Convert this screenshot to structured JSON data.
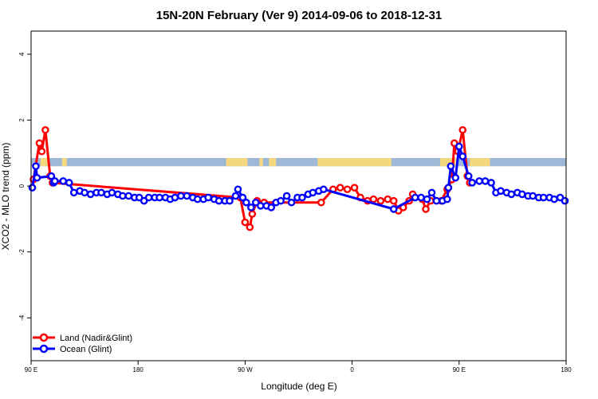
{
  "chart_data": {
    "type": "line",
    "title": "15N-20N February (Ver 9)   2014-09-06 to 2018-12-31",
    "xlabel": "Longitude (deg E)",
    "ylabel": "XCO2 - MLO trend (ppm)",
    "xlim": [
      90,
      540
    ],
    "ylim": [
      -5.3,
      4.7
    ],
    "x_ticks": [
      {
        "value": 90,
        "label": "90 E"
      },
      {
        "value": 180,
        "label": "180"
      },
      {
        "value": 270,
        "label": "90 W"
      },
      {
        "value": 360,
        "label": "0"
      },
      {
        "value": 450,
        "label": "90 E"
      },
      {
        "value": 540,
        "label": "180"
      }
    ],
    "y_ticks": [
      -4,
      -2,
      0,
      2,
      4
    ],
    "grid": false,
    "legend_position": "bottom-left",
    "land_band": {
      "y_range": [
        0.6,
        0.85
      ],
      "ocean_color": "#9fb8d8",
      "land_color": "#f5d77f",
      "land_segments": [
        [
          98,
          104
        ],
        [
          116,
          120
        ],
        [
          254,
          272
        ],
        [
          282,
          285
        ],
        [
          290,
          296
        ],
        [
          331,
          393
        ],
        [
          434,
          448
        ],
        [
          459,
          476
        ]
      ]
    },
    "series": [
      {
        "name": "Land (Nadir&Glint)",
        "color": "#ff0000",
        "points": [
          [
            92,
            0.2
          ],
          [
            97,
            1.3
          ],
          [
            99,
            1.05
          ],
          [
            102,
            1.7
          ],
          [
            106,
            0.3
          ],
          [
            108,
            0.1
          ],
          [
            266,
            -0.35
          ],
          [
            270,
            -1.1
          ],
          [
            274,
            -1.25
          ],
          [
            276,
            -0.85
          ],
          [
            280,
            -0.45
          ],
          [
            286,
            -0.5
          ],
          [
            334,
            -0.5
          ],
          [
            344,
            -0.1
          ],
          [
            350,
            -0.05
          ],
          [
            356,
            -0.1
          ],
          [
            362,
            -0.05
          ],
          [
            367,
            -0.35
          ],
          [
            373,
            -0.45
          ],
          [
            378,
            -0.4
          ],
          [
            384,
            -0.45
          ],
          [
            390,
            -0.4
          ],
          [
            395,
            -0.45
          ],
          [
            399,
            -0.75
          ],
          [
            403,
            -0.65
          ],
          [
            408,
            -0.45
          ],
          [
            411,
            -0.25
          ],
          [
            419,
            -0.4
          ],
          [
            422,
            -0.7
          ],
          [
            426,
            -0.45
          ],
          [
            435,
            -0.45
          ],
          [
            440,
            -0.1
          ],
          [
            444,
            0.2
          ],
          [
            446,
            1.3
          ],
          [
            449,
            1.05
          ],
          [
            453,
            1.7
          ],
          [
            457,
            0.3
          ],
          [
            459,
            0.1
          ]
        ]
      },
      {
        "name": "Ocean (Glint)",
        "color": "#0000ff",
        "points": [
          [
            91,
            -0.05
          ],
          [
            94,
            0.6
          ],
          [
            95,
            0.25
          ],
          [
            107,
            0.3
          ],
          [
            109,
            0.1
          ],
          [
            110,
            0.15
          ],
          [
            117,
            0.15
          ],
          [
            122,
            0.1
          ],
          [
            126,
            -0.2
          ],
          [
            131,
            -0.15
          ],
          [
            135,
            -0.2
          ],
          [
            140,
            -0.25
          ],
          [
            145,
            -0.2
          ],
          [
            149,
            -0.2
          ],
          [
            154,
            -0.25
          ],
          [
            158,
            -0.2
          ],
          [
            163,
            -0.25
          ],
          [
            167,
            -0.3
          ],
          [
            172,
            -0.3
          ],
          [
            177,
            -0.35
          ],
          [
            181,
            -0.35
          ],
          [
            185,
            -0.45
          ],
          [
            189,
            -0.35
          ],
          [
            194,
            -0.35
          ],
          [
            198,
            -0.35
          ],
          [
            203,
            -0.35
          ],
          [
            207,
            -0.4
          ],
          [
            211,
            -0.35
          ],
          [
            216,
            -0.3
          ],
          [
            221,
            -0.3
          ],
          [
            226,
            -0.35
          ],
          [
            230,
            -0.4
          ],
          [
            235,
            -0.4
          ],
          [
            239,
            -0.35
          ],
          [
            244,
            -0.4
          ],
          [
            248,
            -0.45
          ],
          [
            253,
            -0.45
          ],
          [
            257,
            -0.45
          ],
          [
            262,
            -0.3
          ],
          [
            264,
            -0.1
          ],
          [
            268,
            -0.35
          ],
          [
            271,
            -0.5
          ],
          [
            275,
            -0.65
          ],
          [
            279,
            -0.5
          ],
          [
            283,
            -0.6
          ],
          [
            288,
            -0.6
          ],
          [
            292,
            -0.65
          ],
          [
            296,
            -0.5
          ],
          [
            300,
            -0.45
          ],
          [
            305,
            -0.3
          ],
          [
            309,
            -0.5
          ],
          [
            314,
            -0.35
          ],
          [
            318,
            -0.35
          ],
          [
            323,
            -0.25
          ],
          [
            327,
            -0.2
          ],
          [
            332,
            -0.15
          ],
          [
            336,
            -0.1
          ],
          [
            395,
            -0.7
          ],
          [
            413,
            -0.35
          ],
          [
            418,
            -0.35
          ],
          [
            423,
            -0.4
          ],
          [
            427,
            -0.2
          ],
          [
            431,
            -0.45
          ],
          [
            436,
            -0.45
          ],
          [
            440,
            -0.4
          ],
          [
            441,
            -0.05
          ],
          [
            443,
            0.6
          ],
          [
            447,
            0.25
          ],
          [
            450,
            1.2
          ],
          [
            453,
            0.9
          ],
          [
            458,
            0.3
          ],
          [
            461,
            0.1
          ],
          [
            467,
            0.15
          ],
          [
            472,
            0.15
          ],
          [
            477,
            0.1
          ],
          [
            481,
            -0.2
          ],
          [
            485,
            -0.15
          ],
          [
            490,
            -0.2
          ],
          [
            494,
            -0.25
          ],
          [
            499,
            -0.2
          ],
          [
            503,
            -0.25
          ],
          [
            508,
            -0.3
          ],
          [
            512,
            -0.3
          ],
          [
            517,
            -0.35
          ],
          [
            521,
            -0.35
          ],
          [
            526,
            -0.35
          ],
          [
            530,
            -0.4
          ],
          [
            535,
            -0.35
          ],
          [
            539,
            -0.45
          ]
        ]
      }
    ]
  }
}
